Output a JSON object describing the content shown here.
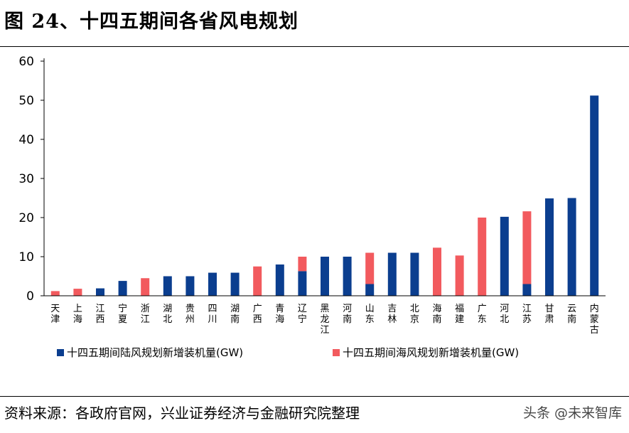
{
  "title": "图 24、十四五期间各省风电规划",
  "source": "资料来源：各政府官网，兴业证券经济与金融研究院整理",
  "watermark": "头条 @未来智库",
  "chart_data": {
    "type": "bar",
    "stacked": true,
    "title": "",
    "xlabel": "",
    "ylabel": "",
    "ylim": [
      0,
      60
    ],
    "yticks": [
      0,
      10,
      20,
      30,
      40,
      50,
      60
    ],
    "grid": false,
    "legend_position": "bottom",
    "categories": [
      "天津",
      "上海",
      "江西",
      "宁夏",
      "浙江",
      "湖北",
      "贵州",
      "四川",
      "湖南",
      "广西",
      "青海",
      "辽宁",
      "黑龙江",
      "河南",
      "山东",
      "吉林",
      "北京",
      "海南",
      "福建",
      "广东",
      "河北",
      "江苏",
      "甘肃",
      "云南",
      "内蒙古"
    ],
    "series": [
      {
        "name": "十四五期间陆风规划新增装机量(GW)",
        "color": "#0b3e8f",
        "values": [
          0,
          0,
          1.9,
          3.8,
          0,
          5,
          5,
          5.9,
          5.9,
          0,
          8,
          6.3,
          10,
          10,
          3,
          11,
          11,
          0,
          0,
          0,
          20.2,
          3,
          24.9,
          25,
          51.2
        ]
      },
      {
        "name": "十四五期间海风规划新增装机量(GW)",
        "color": "#f25a5e",
        "values": [
          1.2,
          1.8,
          0,
          0,
          4.5,
          0,
          0,
          0,
          0,
          7.5,
          0,
          3.7,
          0,
          0,
          8,
          0,
          0,
          12.3,
          10.3,
          20,
          0,
          18.6,
          0,
          0,
          0
        ]
      }
    ]
  }
}
